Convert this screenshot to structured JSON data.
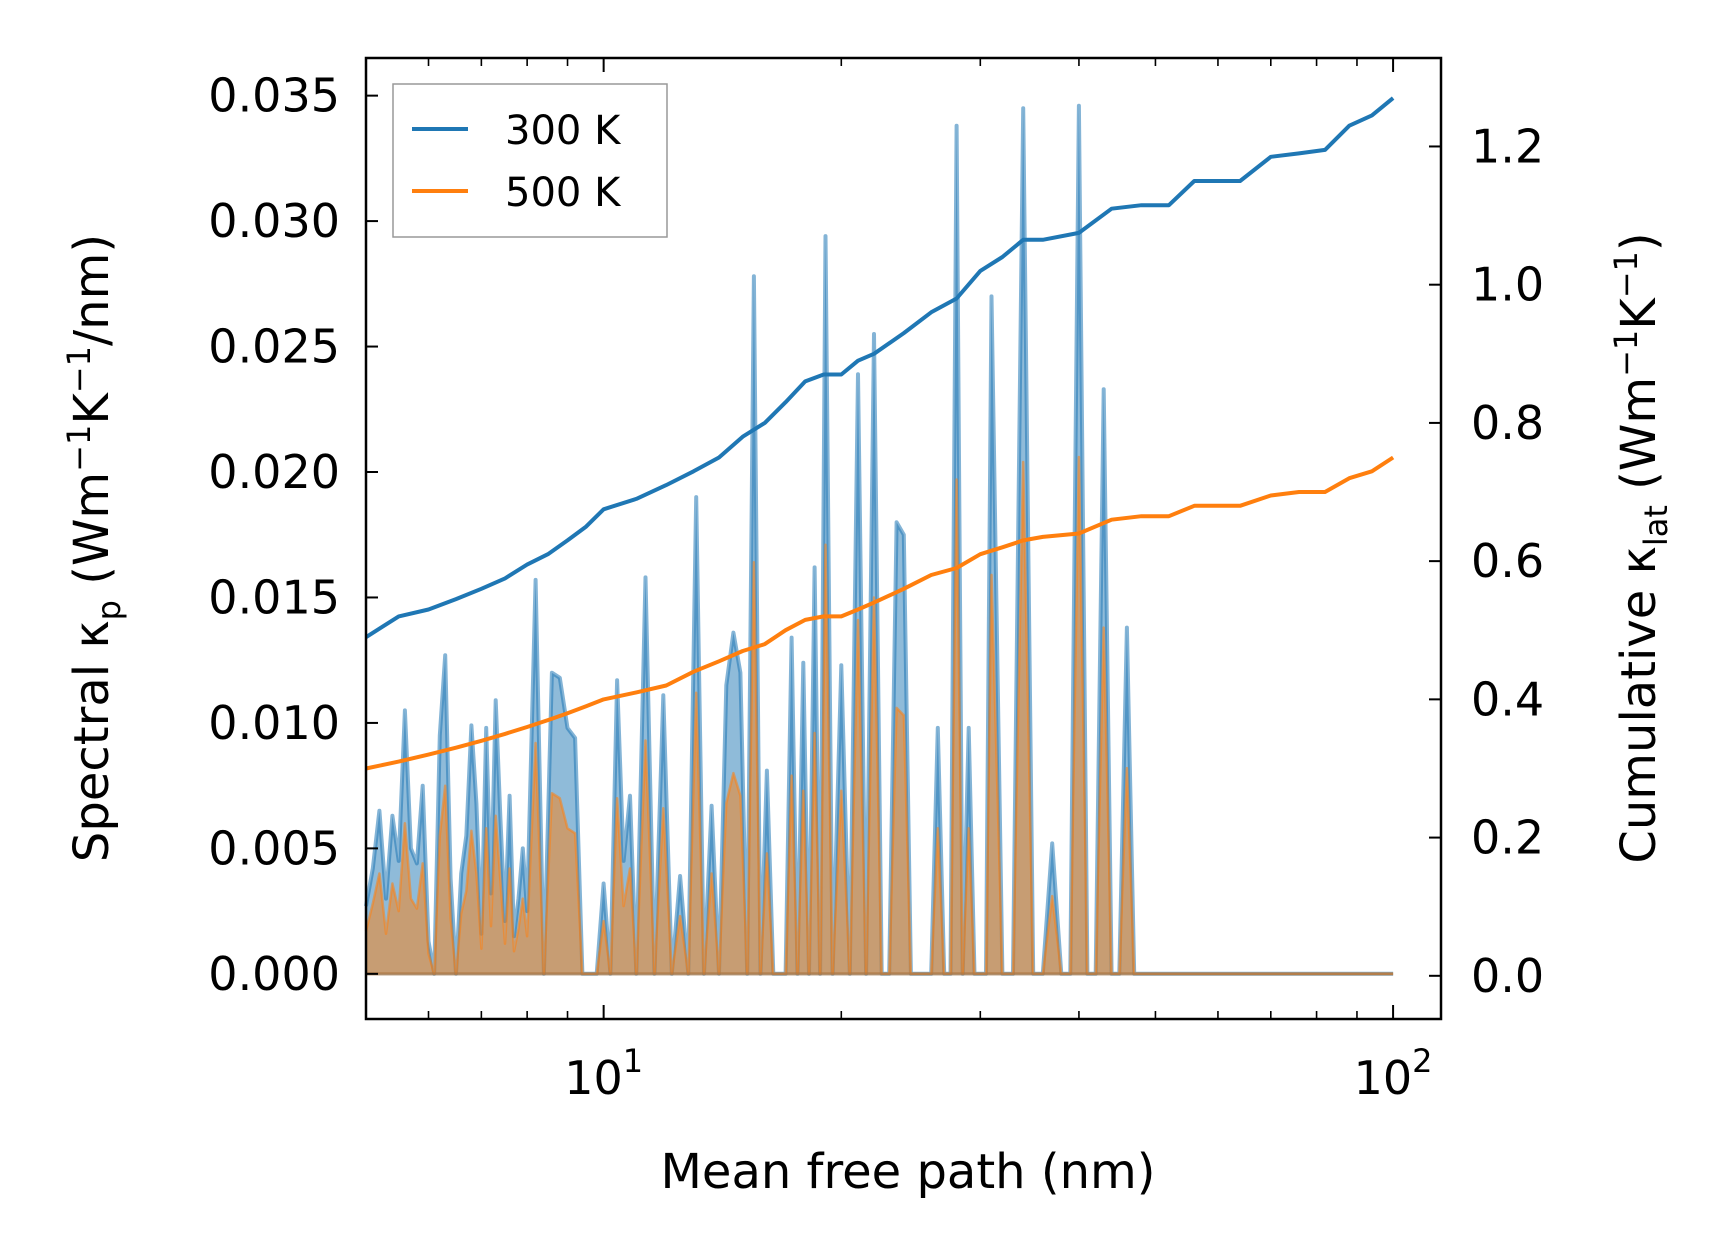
{
  "chart_data": {
    "type": "line",
    "title": "",
    "xlabel": "Mean free path (nm)",
    "xscale": "log",
    "xlim": [
      5.0,
      115.0
    ],
    "x_ticks": [
      {
        "value": 10,
        "base": "10",
        "exp": "1"
      },
      {
        "value": 100,
        "base": "10",
        "exp": "2"
      }
    ],
    "y_left": {
      "label": {
        "main": "Spectral κ",
        "sub": "p",
        "unit_open": " (Wm",
        "sup1": "−1",
        "mid": "K",
        "sup2": "−1",
        "unit_close": "/nm)"
      },
      "lim": [
        -0.0018,
        0.0365
      ],
      "ticks": [
        0.0,
        0.005,
        0.01,
        0.015,
        0.02,
        0.025,
        0.03,
        0.035
      ],
      "tick_labels": [
        "0.000",
        "0.005",
        "0.010",
        "0.015",
        "0.020",
        "0.025",
        "0.030",
        "0.035"
      ]
    },
    "y_right": {
      "label": {
        "main": "Cumulative κ",
        "sub": "lat",
        "unit_open": " (Wm",
        "sup1": "−1",
        "mid": "K",
        "sup2": "−1",
        "unit_close": ")"
      },
      "lim": [
        -0.0625,
        1.328
      ],
      "ticks": [
        0.0,
        0.2,
        0.4,
        0.6,
        0.8,
        1.0,
        1.2
      ],
      "tick_labels": [
        "0.0",
        "0.2",
        "0.4",
        "0.6",
        "0.8",
        "1.0",
        "1.2"
      ]
    },
    "legend": {
      "position": "top-left"
    },
    "series": [
      {
        "name": "300 K",
        "label": "300 K",
        "color": "#1f77b4",
        "cumulative": {
          "x": [
            5.0,
            5.5,
            6.0,
            6.5,
            7.0,
            7.5,
            8.0,
            8.5,
            9.0,
            9.5,
            10.0,
            11.0,
            12.0,
            13.0,
            14.0,
            15.0,
            16.0,
            17.0,
            18.0,
            19.0,
            20.0,
            21.0,
            22.0,
            24.0,
            26.0,
            28.0,
            30.0,
            32.0,
            34.0,
            36.0,
            40.0,
            44.0,
            48.0,
            52.0,
            56.0,
            60.0,
            64.0,
            70.0,
            76.0,
            82.0,
            88.0,
            94.0,
            100.0
          ],
          "y": [
            0.49,
            0.52,
            0.53,
            0.545,
            0.56,
            0.575,
            0.595,
            0.61,
            0.63,
            0.65,
            0.675,
            0.69,
            0.71,
            0.73,
            0.75,
            0.78,
            0.8,
            0.83,
            0.86,
            0.87,
            0.87,
            0.89,
            0.9,
            0.93,
            0.96,
            0.98,
            1.02,
            1.04,
            1.065,
            1.065,
            1.075,
            1.11,
            1.115,
            1.115,
            1.15,
            1.15,
            1.15,
            1.185,
            1.19,
            1.195,
            1.23,
            1.245,
            1.27
          ]
        },
        "spectral": {
          "x": [
            5.0,
            5.1,
            5.2,
            5.3,
            5.4,
            5.5,
            5.6,
            5.7,
            5.8,
            5.9,
            6.0,
            6.1,
            6.2,
            6.3,
            6.4,
            6.5,
            6.6,
            6.7,
            6.8,
            6.9,
            7.0,
            7.1,
            7.2,
            7.3,
            7.4,
            7.5,
            7.6,
            7.7,
            7.8,
            7.9,
            8.0,
            8.2,
            8.4,
            8.6,
            8.8,
            9.0,
            9.2,
            9.4,
            9.6,
            9.8,
            10.0,
            10.2,
            10.4,
            10.6,
            10.8,
            11.0,
            11.3,
            11.6,
            11.9,
            12.2,
            12.5,
            12.8,
            13.1,
            13.4,
            13.7,
            14.0,
            14.3,
            14.6,
            14.9,
            15.2,
            15.5,
            15.8,
            16.1,
            16.4,
            16.7,
            17.0,
            17.3,
            17.6,
            17.9,
            18.2,
            18.5,
            18.8,
            19.1,
            19.5,
            20.0,
            20.5,
            21.0,
            21.5,
            22.0,
            22.5,
            23.0,
            23.5,
            24.0,
            24.5,
            25.0,
            25.5,
            26.0,
            26.5,
            27.0,
            27.5,
            28.0,
            28.5,
            29.0,
            29.5,
            30.0,
            30.5,
            31.0,
            32.0,
            33.0,
            34.0,
            35.0,
            36.0,
            37.0,
            38.0,
            39.0,
            40.0,
            41.0,
            42.0,
            43.0,
            44.0,
            45.0,
            46.0,
            47.0,
            48.0,
            49.0,
            50.0,
            52.0,
            54.0,
            56.0,
            58.0,
            60.0,
            62.0,
            64.0,
            66.0,
            68.0,
            70.0,
            72.0,
            74.0,
            76.0,
            78.0,
            80.0,
            82.0,
            84.0,
            86.0,
            88.0,
            90.0,
            92.0,
            94.0,
            96.0,
            98.0,
            99.0,
            100.0
          ],
          "y": [
            0.0027,
            0.0042,
            0.0065,
            0.003,
            0.0063,
            0.0045,
            0.0105,
            0.005,
            0.0044,
            0.0075,
            0.0013,
            0.0,
            0.0095,
            0.0127,
            0.0038,
            0.0,
            0.004,
            0.0055,
            0.0099,
            0.0068,
            0.0016,
            0.0098,
            0.0032,
            0.0109,
            0.0062,
            0.0021,
            0.0071,
            0.0015,
            0.003,
            0.005,
            0.0025,
            0.0157,
            0.0,
            0.012,
            0.0118,
            0.0098,
            0.0094,
            0.0,
            0.0,
            0.0,
            0.0036,
            0.0,
            0.0117,
            0.0045,
            0.0071,
            0.0,
            0.0158,
            0.0,
            0.0111,
            0.0,
            0.0039,
            0.0,
            0.019,
            0.0,
            0.0067,
            0.0,
            0.0115,
            0.0136,
            0.012,
            0.0,
            0.0278,
            0.0,
            0.0081,
            0.0,
            0.0,
            0.0,
            0.0134,
            0.0,
            0.0124,
            0.0,
            0.0162,
            0.0,
            0.0294,
            0.0,
            0.0123,
            0.0,
            0.0239,
            0.0,
            0.0255,
            0.0,
            0.0,
            0.018,
            0.0175,
            0.0,
            0.0,
            0.0,
            0.0,
            0.0098,
            0.0,
            0.0,
            0.0338,
            0.0,
            0.0098,
            0.0,
            0.0,
            0.0,
            0.027,
            0.0,
            0.0,
            0.0345,
            0.0,
            0.0,
            0.0052,
            0.0,
            0.0,
            0.0346,
            0.0,
            0.0,
            0.0233,
            0.0,
            0.0,
            0.0138,
            0.0,
            0.0,
            0.0,
            0.0,
            0.0,
            0.0,
            0.0,
            0.0,
            0.0,
            0.0,
            0.0,
            0.0,
            0.0,
            0.0,
            0.0,
            0.0,
            0.0,
            0.0,
            0.0,
            0.0,
            0.0,
            0.0,
            0.0,
            0.0,
            0.0,
            0.0,
            0.0,
            0.0,
            0.0,
            0.0
          ]
        }
      },
      {
        "name": "500 K",
        "label": "500 K",
        "color": "#ff7f0e",
        "cumulative": {
          "x": [
            5.0,
            5.5,
            6.0,
            6.5,
            7.0,
            7.5,
            8.0,
            8.5,
            9.0,
            9.5,
            10.0,
            11.0,
            12.0,
            13.0,
            14.0,
            15.0,
            16.0,
            17.0,
            18.0,
            19.0,
            20.0,
            21.0,
            22.0,
            24.0,
            26.0,
            28.0,
            30.0,
            32.0,
            34.0,
            36.0,
            40.0,
            44.0,
            48.0,
            52.0,
            56.0,
            60.0,
            64.0,
            70.0,
            76.0,
            82.0,
            88.0,
            94.0,
            100.0
          ],
          "y": [
            0.3,
            0.31,
            0.32,
            0.33,
            0.34,
            0.35,
            0.36,
            0.37,
            0.38,
            0.39,
            0.4,
            0.41,
            0.42,
            0.44,
            0.455,
            0.47,
            0.48,
            0.5,
            0.515,
            0.52,
            0.52,
            0.53,
            0.54,
            0.56,
            0.58,
            0.59,
            0.61,
            0.62,
            0.63,
            0.635,
            0.64,
            0.66,
            0.665,
            0.665,
            0.68,
            0.68,
            0.68,
            0.695,
            0.7,
            0.7,
            0.72,
            0.73,
            0.75
          ]
        },
        "spectral": {
          "x": [
            5.0,
            5.1,
            5.2,
            5.3,
            5.4,
            5.5,
            5.6,
            5.7,
            5.8,
            5.9,
            6.0,
            6.1,
            6.2,
            6.3,
            6.4,
            6.5,
            6.6,
            6.7,
            6.8,
            6.9,
            7.0,
            7.1,
            7.2,
            7.3,
            7.4,
            7.5,
            7.6,
            7.7,
            7.8,
            7.9,
            8.0,
            8.2,
            8.4,
            8.6,
            8.8,
            9.0,
            9.2,
            9.4,
            9.6,
            9.8,
            10.0,
            10.2,
            10.4,
            10.6,
            10.8,
            11.0,
            11.3,
            11.6,
            11.9,
            12.2,
            12.5,
            12.8,
            13.1,
            13.4,
            13.7,
            14.0,
            14.3,
            14.6,
            14.9,
            15.2,
            15.5,
            15.8,
            16.1,
            16.4,
            16.7,
            17.0,
            17.3,
            17.6,
            17.9,
            18.2,
            18.5,
            18.8,
            19.1,
            19.5,
            20.0,
            20.5,
            21.0,
            21.5,
            22.0,
            22.5,
            23.0,
            23.5,
            24.0,
            24.5,
            25.0,
            25.5,
            26.0,
            26.5,
            27.0,
            27.5,
            28.0,
            28.5,
            29.0,
            29.5,
            30.0,
            30.5,
            31.0,
            32.0,
            33.0,
            34.0,
            35.0,
            36.0,
            37.0,
            38.0,
            39.0,
            40.0,
            41.0,
            42.0,
            43.0,
            44.0,
            45.0,
            46.0,
            47.0,
            48.0,
            49.0,
            50.0,
            52.0,
            54.0,
            56.0,
            58.0,
            60.0,
            62.0,
            64.0,
            66.0,
            68.0,
            70.0,
            72.0,
            74.0,
            76.0,
            78.0,
            80.0,
            82.0,
            84.0,
            86.0,
            88.0,
            90.0,
            92.0,
            94.0,
            96.0,
            98.0,
            99.0,
            100.0
          ],
          "y": [
            0.0017,
            0.0028,
            0.004,
            0.0016,
            0.0036,
            0.0025,
            0.006,
            0.003,
            0.0026,
            0.0044,
            0.0008,
            0.0,
            0.0055,
            0.0075,
            0.0022,
            0.0,
            0.0024,
            0.0033,
            0.0057,
            0.004,
            0.001,
            0.0058,
            0.0019,
            0.0063,
            0.0037,
            0.0012,
            0.0042,
            0.0009,
            0.0018,
            0.003,
            0.0015,
            0.0092,
            0.0,
            0.0072,
            0.007,
            0.0058,
            0.0056,
            0.0,
            0.0,
            0.0,
            0.0021,
            0.0,
            0.007,
            0.0027,
            0.0042,
            0.0,
            0.0093,
            0.0,
            0.0066,
            0.0,
            0.0023,
            0.0,
            0.0112,
            0.0,
            0.004,
            0.0,
            0.0068,
            0.008,
            0.0071,
            0.0,
            0.0164,
            0.0,
            0.0048,
            0.0,
            0.0,
            0.0,
            0.0079,
            0.0,
            0.0073,
            0.0,
            0.0096,
            0.0,
            0.0171,
            0.0,
            0.0073,
            0.0,
            0.0141,
            0.0,
            0.015,
            0.0,
            0.0,
            0.0106,
            0.0103,
            0.0,
            0.0,
            0.0,
            0.0,
            0.0058,
            0.0,
            0.0,
            0.0197,
            0.0,
            0.0058,
            0.0,
            0.0,
            0.0,
            0.0159,
            0.0,
            0.0,
            0.0204,
            0.0,
            0.0,
            0.0031,
            0.0,
            0.0,
            0.0206,
            0.0,
            0.0,
            0.0138,
            0.0,
            0.0,
            0.0082,
            0.0,
            0.0,
            0.0,
            0.0,
            0.0,
            0.0,
            0.0,
            0.0,
            0.0,
            0.0,
            0.0,
            0.0,
            0.0,
            0.0,
            0.0,
            0.0,
            0.0,
            0.0,
            0.0,
            0.0,
            0.0,
            0.0,
            0.0,
            0.0,
            0.0,
            0.0,
            0.0,
            0.0,
            0.0,
            0.0
          ]
        }
      }
    ]
  }
}
